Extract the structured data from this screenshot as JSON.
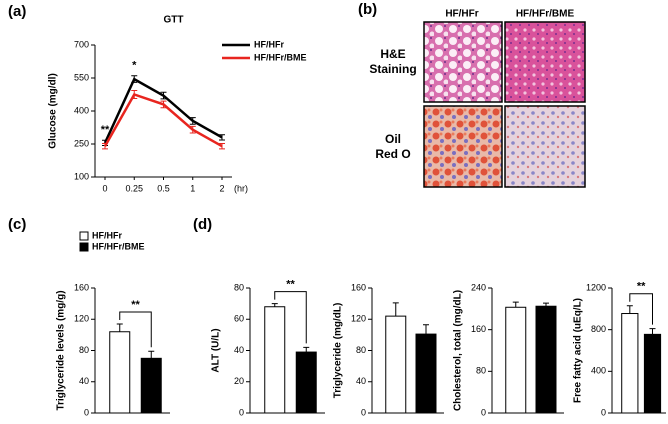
{
  "chart_data": [
    {
      "type": "line",
      "panel": "(a)",
      "title": "GTT",
      "ylabel": "Glucose (mg/dl)",
      "xlabel": "(hr)",
      "categories": [
        "0",
        "0.25",
        "0.5",
        "1",
        "2"
      ],
      "ylim": [
        100,
        700
      ],
      "yticks": [
        100,
        250,
        400,
        550,
        700
      ],
      "series": [
        {
          "name": "HF/HFr",
          "color": "#000000",
          "values": [
            255,
            545,
            470,
            355,
            280
          ],
          "errors": [
            12,
            15,
            15,
            15,
            12
          ]
        },
        {
          "name": "HF/HFr/BME",
          "color": "#e8251f",
          "values": [
            240,
            475,
            430,
            315,
            240
          ],
          "errors": [
            12,
            18,
            15,
            15,
            12
          ]
        }
      ],
      "annotations": [
        "**",
        "*",
        null,
        null,
        null
      ]
    },
    {
      "type": "bar",
      "panel": "(c)",
      "ylabel": "Triglyceride levels (mg/g)",
      "legend": [
        "HF/HFr",
        "HF/HFr/BME"
      ],
      "ylim": [
        0,
        160
      ],
      "yticks": [
        0,
        40,
        80,
        120,
        160
      ],
      "values": [
        104,
        70
      ],
      "errors": [
        10,
        9
      ],
      "colors": [
        "#ffffff",
        "#000000"
      ],
      "significance": "**"
    },
    {
      "type": "bar",
      "panel": "(d)",
      "ylabel": "ALT (U/L)",
      "ylim": [
        0,
        80
      ],
      "yticks": [
        0,
        20,
        40,
        60,
        80
      ],
      "values": [
        68,
        39
      ],
      "errors": [
        2,
        3
      ],
      "colors": [
        "#ffffff",
        "#000000"
      ],
      "significance": "**"
    },
    {
      "type": "bar",
      "ylabel": "Triglyceride (mg/dL)",
      "ylim": [
        0,
        160
      ],
      "yticks": [
        0,
        40,
        80,
        120,
        160
      ],
      "values": [
        124,
        101
      ],
      "errors": [
        17,
        12
      ],
      "colors": [
        "#ffffff",
        "#000000"
      ]
    },
    {
      "type": "bar",
      "ylabel": "Cholesterol, total (mg/dL)",
      "ylim": [
        0,
        240
      ],
      "yticks": [
        0,
        80,
        160,
        240
      ],
      "values": [
        203,
        205
      ],
      "errors": [
        10,
        6
      ],
      "colors": [
        "#ffffff",
        "#000000"
      ]
    },
    {
      "type": "bar",
      "ylabel": "Free fatty acid (uEq/L)",
      "ylim": [
        0,
        1200
      ],
      "yticks": [
        0,
        400,
        800,
        1200
      ],
      "values": [
        955,
        755
      ],
      "errors": [
        75,
        55
      ],
      "colors": [
        "#ffffff",
        "#000000"
      ],
      "significance": "**"
    }
  ],
  "histology": {
    "panel": "(b)",
    "columns": [
      "HF/HFr",
      "HF/HFr/BME"
    ],
    "rows": [
      [
        "H&E",
        "Staining"
      ],
      [
        "Oil",
        "Red O"
      ]
    ]
  }
}
